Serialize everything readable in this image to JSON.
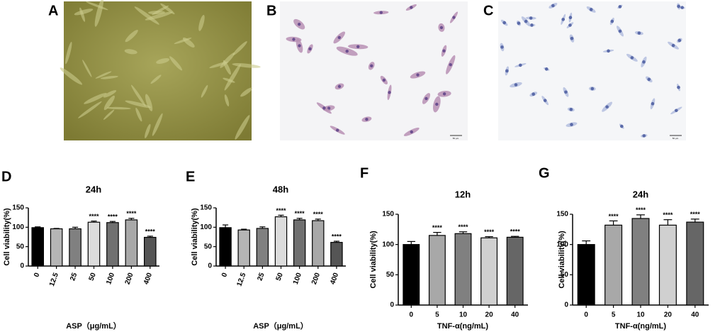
{
  "images": [
    {
      "label": "A"
    },
    {
      "label": "B",
      "scale_bar": "50 μm"
    },
    {
      "label": "C",
      "scale_bar": "50 μm"
    }
  ],
  "chart_data": [
    {
      "type": "bar",
      "panel_label": "D",
      "title": "24h",
      "x_label": "ASP（μg/mL）",
      "y_label": "Cell viability(%)",
      "categories": [
        "0",
        "12.5",
        "25",
        "50",
        "100",
        "200",
        "400"
      ],
      "values": [
        99,
        96,
        96,
        113,
        112,
        119,
        74
      ],
      "errors": [
        2,
        1,
        4,
        3,
        3,
        4,
        3
      ],
      "colors": [
        "#000000",
        "#b5b5b5",
        "#808080",
        "#dcdcdc",
        "#707070",
        "#a8a8a8",
        "#555555"
      ],
      "significance": [
        null,
        null,
        null,
        "****",
        "****",
        "****",
        "****"
      ],
      "ylim": [
        0,
        150
      ],
      "yticks": [
        0,
        50,
        100,
        150
      ],
      "rotate_x_labels": true
    },
    {
      "type": "bar",
      "panel_label": "E",
      "title": "48h",
      "x_label": "ASP（μg/mL）",
      "y_label": "Cell viability(%)",
      "categories": [
        "0",
        "12.5",
        "25",
        "50",
        "100",
        "200",
        "400"
      ],
      "values": [
        99,
        93,
        97,
        127,
        119,
        117,
        61
      ],
      "errors": [
        7,
        2,
        4,
        4,
        4,
        4,
        3
      ],
      "colors": [
        "#000000",
        "#b5b5b5",
        "#808080",
        "#dcdcdc",
        "#707070",
        "#a8a8a8",
        "#555555"
      ],
      "significance": [
        null,
        null,
        null,
        "****",
        "****",
        "****",
        "****"
      ],
      "ylim": [
        0,
        150
      ],
      "yticks": [
        0,
        50,
        100,
        150
      ],
      "rotate_x_labels": true
    },
    {
      "type": "bar",
      "panel_label": "F",
      "title": "12h",
      "x_label": "TNF-α(ng/mL)",
      "y_label": "Cell viability(%)",
      "categories": [
        "0",
        "5",
        "10",
        "20",
        "40"
      ],
      "values": [
        100,
        115,
        118,
        111,
        112
      ],
      "errors": [
        5,
        5,
        3,
        2,
        1.5
      ],
      "colors": [
        "#000000",
        "#a8a8a8",
        "#808080",
        "#d0d0d0",
        "#666666"
      ],
      "significance": [
        null,
        "****",
        "****",
        "****",
        "****"
      ],
      "ylim": [
        0,
        150
      ],
      "yticks": [
        0,
        50,
        100,
        150
      ],
      "rotate_x_labels": false
    },
    {
      "type": "bar",
      "panel_label": "G",
      "title": "24h",
      "x_label": "TNF-α(ng/mL)",
      "y_label": "Cell viability(%)",
      "categories": [
        "0",
        "5",
        "10",
        "20",
        "40"
      ],
      "values": [
        100,
        132,
        143,
        132,
        137
      ],
      "errors": [
        6,
        7,
        6,
        9,
        5
      ],
      "colors": [
        "#000000",
        "#a8a8a8",
        "#808080",
        "#d0d0d0",
        "#666666"
      ],
      "significance": [
        null,
        "****",
        "****",
        "****",
        "****"
      ],
      "ylim": [
        0,
        150
      ],
      "yticks": [
        0,
        50,
        100,
        150
      ],
      "rotate_x_labels": false
    }
  ]
}
